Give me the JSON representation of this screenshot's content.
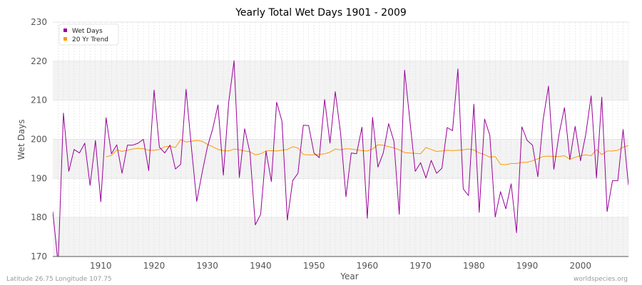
{
  "colors": {
    "wet_days": "#990099",
    "trend": "#ff9900",
    "band_light": "#ffffff",
    "band_dark": "#f3f3f3"
  },
  "footer": {
    "left": "Latitude 26.75 Longitude 107.75",
    "right": "worldspecies.org"
  },
  "chart_data": {
    "type": "line",
    "title": "Yearly Total Wet Days 1901 - 2009",
    "xlabel": "Year",
    "ylabel": "Wet Days",
    "xlim": [
      1901,
      2009
    ],
    "ylim": [
      170,
      230
    ],
    "xticks": [
      1910,
      1920,
      1930,
      1940,
      1950,
      1960,
      1970,
      1980,
      1990,
      2000
    ],
    "yticks": [
      170,
      180,
      190,
      200,
      210,
      220,
      230
    ],
    "grid": true,
    "legend_position": "top-left",
    "series": [
      {
        "name": "Wet Days",
        "color": "#990099",
        "x": [
          1901,
          1902,
          1903,
          1904,
          1905,
          1906,
          1907,
          1908,
          1909,
          1910,
          1911,
          1912,
          1913,
          1914,
          1915,
          1916,
          1917,
          1918,
          1919,
          1920,
          1921,
          1922,
          1923,
          1924,
          1925,
          1926,
          1927,
          1928,
          1929,
          1930,
          1931,
          1932,
          1933,
          1934,
          1935,
          1936,
          1937,
          1938,
          1939,
          1940,
          1941,
          1942,
          1943,
          1944,
          1945,
          1946,
          1947,
          1948,
          1949,
          1950,
          1951,
          1952,
          1953,
          1954,
          1955,
          1956,
          1957,
          1958,
          1959,
          1960,
          1961,
          1962,
          1963,
          1964,
          1965,
          1966,
          1967,
          1968,
          1969,
          1970,
          1971,
          1972,
          1973,
          1974,
          1975,
          1976,
          1977,
          1978,
          1979,
          1980,
          1981,
          1982,
          1983,
          1984,
          1985,
          1986,
          1987,
          1988,
          1989,
          1990,
          1991,
          1992,
          1993,
          1994,
          1995,
          1996,
          1997,
          1998,
          1999,
          2000,
          2001,
          2002,
          2003,
          2004,
          2005,
          2006,
          2007,
          2008,
          2009
        ],
        "values": [
          181.5,
          168.0,
          206.7,
          191.8,
          197.4,
          196.5,
          199.0,
          188.2,
          199.7,
          184.0,
          205.5,
          196.3,
          198.6,
          191.3,
          198.5,
          198.5,
          199.0,
          200.0,
          192.0,
          212.6,
          198.0,
          196.5,
          198.5,
          192.4,
          193.6,
          212.8,
          198.0,
          184.1,
          191.3,
          198.0,
          202.7,
          208.8,
          190.8,
          209.5,
          220.1,
          190.2,
          202.7,
          196.5,
          178.1,
          180.8,
          197.0,
          189.2,
          209.5,
          204.6,
          179.3,
          189.4,
          191.3,
          203.6,
          203.5,
          196.5,
          195.3,
          210.2,
          199.0,
          212.2,
          201.5,
          185.3,
          196.5,
          196.3,
          203.1,
          179.8,
          205.6,
          192.9,
          196.5,
          204.0,
          199.5,
          180.8,
          217.7,
          204.8,
          191.8,
          194.0,
          190.1,
          194.6,
          191.3,
          192.6,
          203.0,
          202.2,
          218.0,
          187.3,
          185.6,
          209.0,
          181.3,
          205.2,
          201.0,
          180.1,
          186.6,
          182.2,
          188.6,
          176.1,
          203.2,
          199.7,
          198.5,
          190.4,
          205.0,
          213.6,
          192.3,
          201.5,
          208.1,
          194.8,
          203.3,
          194.5,
          201.3,
          211.1,
          190.1,
          210.8,
          181.5,
          189.4,
          189.4,
          202.5,
          188.3
        ]
      },
      {
        "name": "20 Yr Trend",
        "color": "#ff9900",
        "x": [
          1911,
          1912,
          1913,
          1914,
          1915,
          1916,
          1917,
          1918,
          1919,
          1920,
          1921,
          1922,
          1923,
          1924,
          1925,
          1926,
          1927,
          1928,
          1929,
          1930,
          1931,
          1932,
          1933,
          1934,
          1935,
          1936,
          1937,
          1938,
          1939,
          1940,
          1941,
          1942,
          1943,
          1944,
          1945,
          1946,
          1947,
          1948,
          1949,
          1950,
          1951,
          1952,
          1953,
          1954,
          1955,
          1956,
          1957,
          1958,
          1959,
          1960,
          1961,
          1962,
          1963,
          1964,
          1965,
          1966,
          1967,
          1968,
          1969,
          1970,
          1971,
          1972,
          1973,
          1974,
          1975,
          1976,
          1977,
          1978,
          1979,
          1980,
          1981,
          1982,
          1983,
          1984,
          1985,
          1986,
          1987,
          1988,
          1989,
          1990,
          1991,
          1992,
          1993,
          1994,
          1995,
          1996,
          1997,
          1998,
          1999
        ],
        "values": [
          195.5,
          195.9,
          197.3,
          196.9,
          197.2,
          197.5,
          197.7,
          197.6,
          197.2,
          197.2,
          197.4,
          198.1,
          198.2,
          197.9,
          199.9,
          199.3,
          199.5,
          199.7,
          199.5,
          198.7,
          198.1,
          197.4,
          197.1,
          197.0,
          197.5,
          197.3,
          197.0,
          196.8,
          196.0,
          196.3,
          197.0,
          197.1,
          197.0,
          197.2,
          197.4,
          198.1,
          197.8,
          196.1,
          196.0,
          196.0,
          196.1,
          196.3,
          196.7,
          197.5,
          197.3,
          197.6,
          197.5,
          197.3,
          197.1,
          197.0,
          197.5,
          198.6,
          198.5,
          198.1,
          197.8,
          197.3,
          196.6,
          196.5,
          196.4,
          196.3,
          197.9,
          197.4,
          196.9,
          197.0,
          197.2,
          197.1,
          197.2,
          197.3,
          197.5,
          197.3,
          196.5,
          196.1,
          195.4,
          195.6,
          193.6,
          193.5,
          193.8,
          193.8,
          194.1,
          194.1,
          194.5,
          195.0,
          195.6,
          195.7,
          195.6,
          195.6,
          195.8,
          194.9,
          195.4
        ],
        "values_tail_note_free": [
          195.8,
          196.0,
          195.8,
          197.4,
          196.1,
          197.0,
          197.0,
          197.2,
          198.0,
          198.4
        ]
      }
    ]
  }
}
